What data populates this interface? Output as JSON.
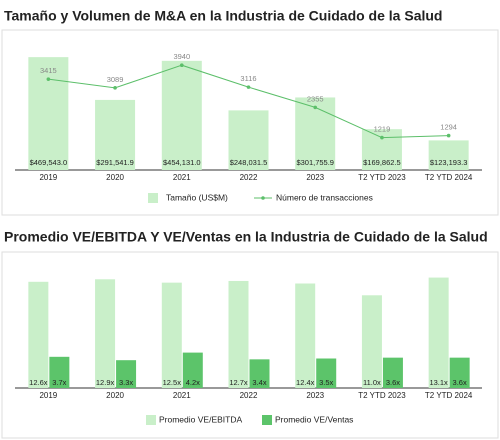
{
  "chart_data": [
    {
      "type": "combo",
      "title": "Tamaño y Volumen de M&A en la Industria de Cuidado de la Salud",
      "categories": [
        "2019",
        "2020",
        "2021",
        "2022",
        "2023",
        "T2 YTD 2023",
        "T2 YTD 2024"
      ],
      "series": [
        {
          "name": "Tamaño (US$M)",
          "type": "bar",
          "color": "#c9efc9",
          "values": [
            469543.0,
            291541.9,
            454131.0,
            248031.5,
            301755.9,
            169862.5,
            123193.3
          ],
          "value_labels": [
            "$469,543.0",
            "$291,541.9",
            "$454,131.0",
            "$248,031.5",
            "$301,755.9",
            "$169,862.5",
            "$123,193.3"
          ]
        },
        {
          "name": "Número de transacciones",
          "type": "line",
          "axis": "y2",
          "color": "#5cbf6a",
          "values": [
            3415,
            3089,
            3940,
            3116,
            2355,
            1219,
            1294
          ]
        }
      ],
      "ylim": [
        0,
        520000
      ],
      "y2lim": [
        0,
        4700
      ],
      "legend": "bottom"
    },
    {
      "type": "bar",
      "title": "Promedio VE/EBITDA Y VE/Ventas en la Industria de Cuidado de la Salud",
      "categories": [
        "2019",
        "2020",
        "2021",
        "2022",
        "2023",
        "T2 YTD 2023",
        "T2 YTD 2024"
      ],
      "series": [
        {
          "name": "Promedio VE/EBITDA",
          "color": "#c9efc9",
          "values": [
            12.6,
            12.9,
            12.5,
            12.7,
            12.4,
            11.0,
            13.1
          ],
          "value_labels": [
            "12.6x",
            "12.9x",
            "12.5x",
            "12.7x",
            "12.4x",
            "11.0x",
            "13.1x"
          ]
        },
        {
          "name": "Promedio VE/Ventas",
          "color": "#5cc46a",
          "values": [
            3.7,
            3.3,
            4.2,
            3.4,
            3.5,
            3.6,
            3.6
          ],
          "value_labels": [
            "3.7x",
            "3.3x",
            "4.2x",
            "3.4x",
            "3.5x",
            "3.6x",
            "3.6x"
          ]
        }
      ],
      "ylim": [
        0,
        14
      ],
      "legend": "bottom"
    }
  ]
}
